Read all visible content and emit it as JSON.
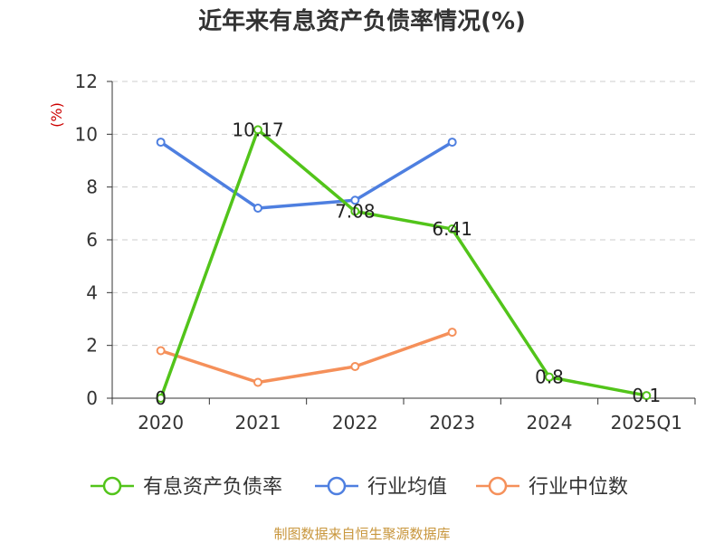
{
  "chart_data": {
    "type": "line",
    "title": "近年来有息资产负债率情况(%)",
    "ylabel": "(%)",
    "xlabel": "",
    "ylim": [
      0,
      12
    ],
    "yticks": [
      "0",
      "2",
      "4",
      "6",
      "8",
      "10",
      "12"
    ],
    "categories": [
      "2020",
      "2021",
      "2022",
      "2023",
      "2024",
      "2025Q1"
    ],
    "grid": true,
    "legend_position": "bottom",
    "series": [
      {
        "name": "有息资产负债率",
        "color": "#52c41a",
        "values": [
          0,
          10.17,
          7.08,
          6.41,
          0.8,
          0.1
        ],
        "labels": [
          "0",
          "10.17",
          "7.08",
          "6.41",
          "0.8",
          "0.1"
        ]
      },
      {
        "name": "行业均值",
        "color": "#4e7fe0",
        "values": [
          9.7,
          7.2,
          7.5,
          9.7,
          null,
          null
        ]
      },
      {
        "name": "行业中位数",
        "color": "#f5905a",
        "values": [
          1.8,
          0.6,
          1.2,
          2.5,
          null,
          null
        ]
      }
    ]
  },
  "footer": {
    "source": "制图数据来自恒生聚源数据库"
  }
}
